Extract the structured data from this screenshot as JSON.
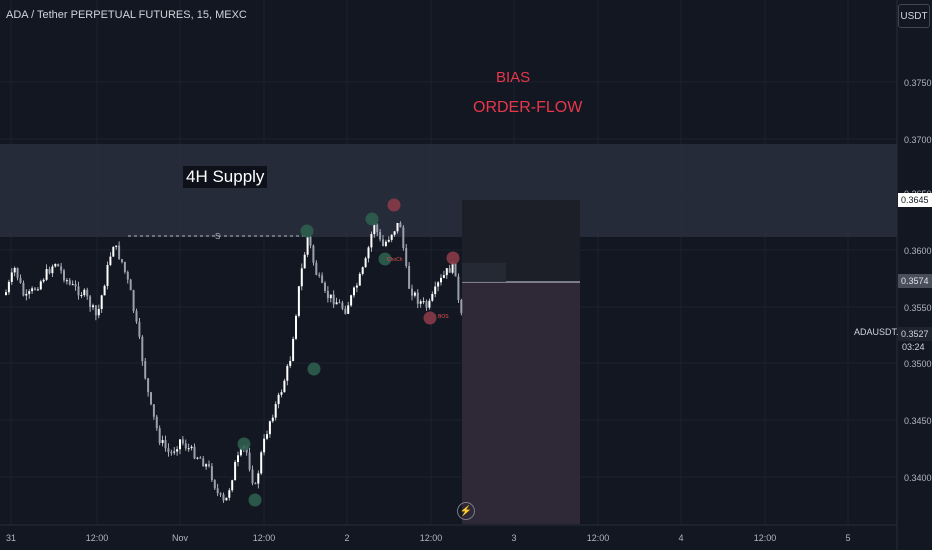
{
  "header": {
    "title": "ADA / Tether PERPETUAL FUTURES, 15, MEXC"
  },
  "toolbar": {
    "currency": "USDT"
  },
  "price_axis": {
    "ticks": [
      "0.3750",
      "0.3700",
      "0.3650",
      "0.3600",
      "0.3550",
      "0.3500",
      "0.3450",
      "0.3400"
    ],
    "top_badge": "0.3645",
    "entry_badge": "0.3574",
    "current_price": "0.3527",
    "countdown": "03:24",
    "symbol": "ADAUSDT.P"
  },
  "time_axis": {
    "ticks": [
      "31",
      "12:00",
      "Nov",
      "12:00",
      "2",
      "12:00",
      "3",
      "12:00",
      "4",
      "12:00",
      "5"
    ]
  },
  "annotations": {
    "supply_zone": "4H Supply",
    "bias": "BIAS",
    "order_flow": "ORDER-FLOW",
    "marker_bos": "BOS",
    "marker_choch": "ChoCh",
    "level_marker": "S"
  },
  "colors": {
    "background": "#131722",
    "bullish": "#ffffff",
    "bearish": "#ffffff",
    "supply_zone": "#2a2f3d",
    "annotation_red": "#e7374c",
    "position_short": "#2e2837",
    "marker_green": "#26a69a",
    "marker_red": "#ef5350"
  }
}
